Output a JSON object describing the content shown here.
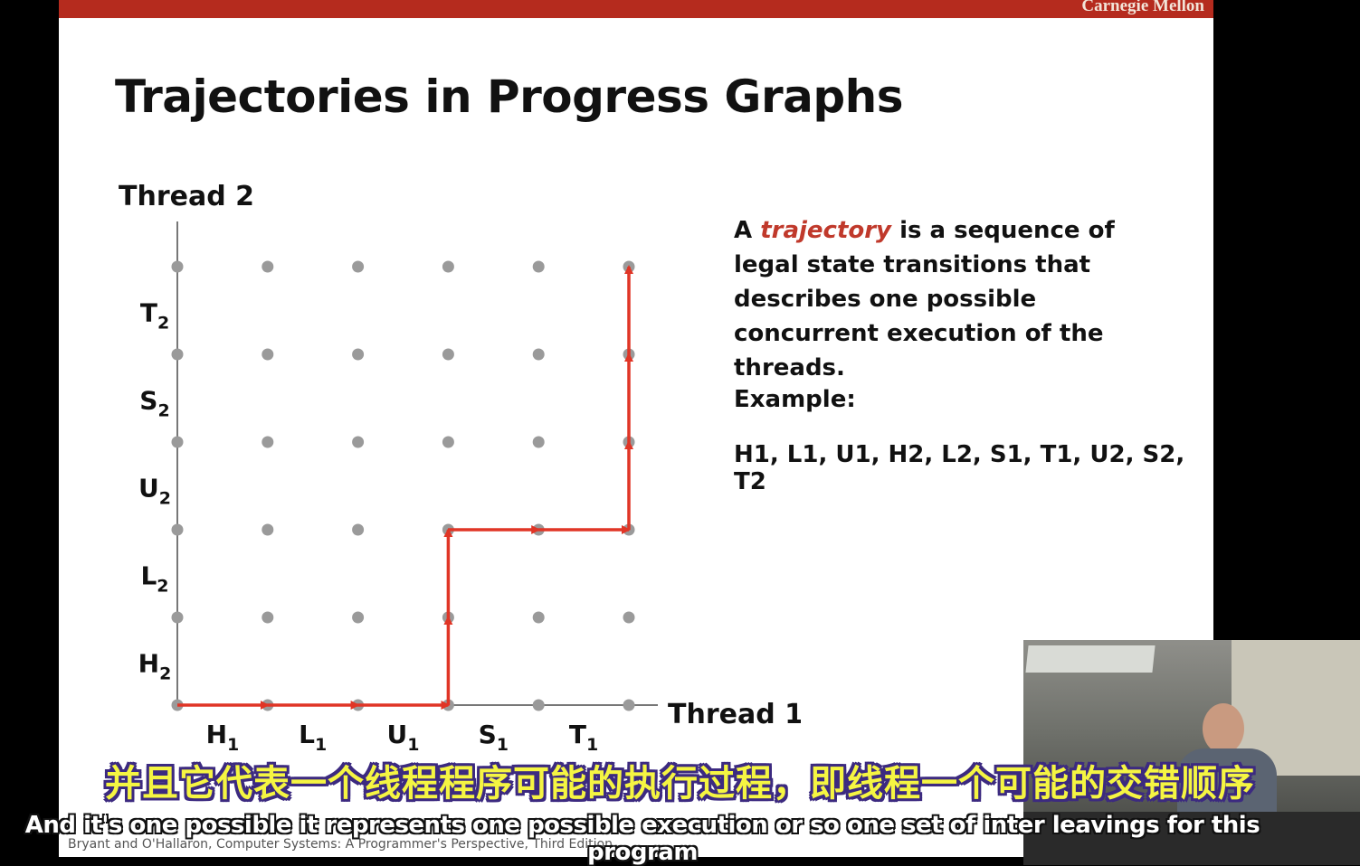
{
  "header": {
    "brand": "Carnegie Mellon"
  },
  "slide": {
    "title": "Trajectories in Progress Graphs",
    "paragraph_prefix": "A ",
    "paragraph_term": "trajectory",
    "paragraph_rest": " is a sequence of legal state transitions that describes one possible concurrent execution of the threads.",
    "example_label": "Example:",
    "example_sequence": "H1, L1, U1, H2, L2,  S1, T1, U2, S2, T2",
    "footer": "Bryant and O'Hallaron, Computer Systems: A Programmer's Perspective, Third Edition"
  },
  "diagram": {
    "y_axis_label": "Thread 2",
    "x_axis_label": "Thread 1",
    "x_instructions": [
      {
        "base": "H",
        "sub": "1"
      },
      {
        "base": "L",
        "sub": "1"
      },
      {
        "base": "U",
        "sub": "1"
      },
      {
        "base": "S",
        "sub": "1"
      },
      {
        "base": "T",
        "sub": "1"
      }
    ],
    "y_instructions": [
      {
        "base": "H",
        "sub": "2"
      },
      {
        "base": "L",
        "sub": "2"
      },
      {
        "base": "U",
        "sub": "2"
      },
      {
        "base": "S",
        "sub": "2"
      },
      {
        "base": "T",
        "sub": "2"
      }
    ],
    "trajectory": [
      [
        0,
        0
      ],
      [
        1,
        0
      ],
      [
        2,
        0
      ],
      [
        3,
        0
      ],
      [
        3,
        1
      ],
      [
        3,
        2
      ],
      [
        4,
        2
      ],
      [
        5,
        2
      ],
      [
        5,
        3
      ],
      [
        5,
        4
      ],
      [
        5,
        5
      ]
    ],
    "trajectory_color": "#e03526",
    "node_color": "#9a9a9a"
  },
  "subtitles": {
    "chinese": "并且它代表一个线程程序可能的执行过程，即线程一个可能的交错顺序",
    "english": "And it's one possible it represents one possible execution or so one set of inter leavings for this program"
  }
}
